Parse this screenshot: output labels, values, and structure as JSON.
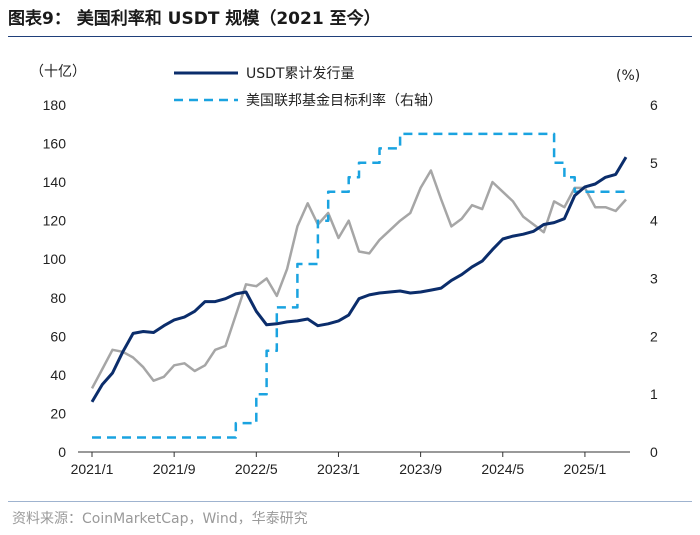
{
  "figure": {
    "title": "图表9： 美国利率和 USDT 规模（2021 至今）",
    "source": "资料来源：CoinMarketCap，Wind，华泰研究"
  },
  "chart_data": {
    "type": "line",
    "left_axis": {
      "unit_label": "（十亿）",
      "min": 0,
      "max": 180,
      "ticks": [
        0,
        20,
        40,
        60,
        80,
        100,
        120,
        140,
        160,
        180
      ]
    },
    "right_axis": {
      "unit_label": "(%)",
      "min": 0,
      "max": 6,
      "ticks": [
        0,
        1,
        2,
        3,
        4,
        5,
        6
      ]
    },
    "x_axis": {
      "tick_labels": [
        "2021/1",
        "2021/9",
        "2022/5",
        "2023/1",
        "2023/9",
        "2024/5",
        "2025/1"
      ],
      "tick_index": [
        0,
        8,
        16,
        24,
        32,
        40,
        48
      ],
      "num_points": 53
    },
    "legend": [
      {
        "name": "USDT累计发行量",
        "style": "solid",
        "color": "#0b2d6b"
      },
      {
        "name": "美国联邦基金目标利率（右轴）",
        "style": "dashed",
        "color": "#1aa3e0"
      }
    ],
    "series": [
      {
        "name": "USDT累计发行量",
        "axis": "left",
        "color": "#0b2d6b",
        "style": "solid",
        "values": [
          26,
          35,
          41,
          52,
          61.5,
          62.5,
          62,
          65.5,
          68.5,
          70,
          73,
          78,
          78,
          79.5,
          82,
          83,
          73,
          66,
          66.5,
          67.5,
          68,
          69,
          65.5,
          66.5,
          68,
          71,
          79.5,
          81.5,
          82.5,
          83,
          83.5,
          82.5,
          83,
          84,
          85,
          89,
          92,
          96,
          99,
          105,
          110.5,
          112,
          113,
          114.5,
          118,
          119,
          121,
          133,
          137.5,
          139,
          142.5,
          144,
          153
        ]
      },
      {
        "name": "未标注灰线",
        "axis": "left",
        "color": "#a6a6a6",
        "style": "solid",
        "values": [
          33,
          43,
          53,
          52,
          49,
          44,
          37,
          39,
          45,
          46,
          42,
          45,
          53,
          55,
          71,
          87,
          86,
          90,
          81,
          95,
          117,
          129,
          118,
          124,
          111,
          120,
          104,
          103,
          110,
          115,
          120,
          124,
          137,
          146,
          131,
          117,
          121,
          128,
          126,
          140,
          135,
          130,
          122,
          118,
          114,
          130,
          127,
          137,
          137,
          127,
          127,
          125,
          131
        ]
      },
      {
        "name": "美国联邦基金目标利率（右轴）",
        "axis": "right",
        "color": "#1aa3e0",
        "style": "dashed",
        "step": true,
        "values": [
          0.25,
          0.25,
          0.25,
          0.25,
          0.25,
          0.25,
          0.25,
          0.25,
          0.25,
          0.25,
          0.25,
          0.25,
          0.25,
          0.25,
          0.5,
          0.5,
          1.0,
          1.75,
          2.5,
          2.5,
          3.25,
          3.25,
          4.0,
          4.5,
          4.5,
          4.75,
          5.0,
          5.0,
          5.25,
          5.25,
          5.5,
          5.5,
          5.5,
          5.5,
          5.5,
          5.5,
          5.5,
          5.5,
          5.5,
          5.5,
          5.5,
          5.5,
          5.5,
          5.5,
          5.5,
          5.0,
          4.75,
          4.5,
          4.5,
          4.5,
          4.5,
          4.5,
          4.5
        ]
      }
    ]
  }
}
